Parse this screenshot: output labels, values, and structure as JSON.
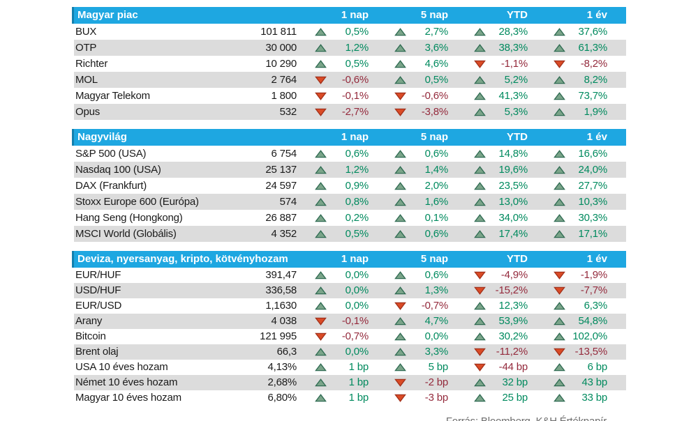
{
  "columns": [
    "1 nap",
    "5 nap",
    "YTD",
    "1 év"
  ],
  "sections": [
    {
      "title": "Magyar piac",
      "rows": [
        {
          "name": "BUX",
          "value": "101 811",
          "changes": [
            {
              "dir": "up",
              "text": "0,5%"
            },
            {
              "dir": "up",
              "text": "2,7%"
            },
            {
              "dir": "up",
              "text": "28,3%"
            },
            {
              "dir": "up",
              "text": "37,6%"
            }
          ]
        },
        {
          "name": "OTP",
          "value": "30 000",
          "changes": [
            {
              "dir": "up",
              "text": "1,2%"
            },
            {
              "dir": "up",
              "text": "3,6%"
            },
            {
              "dir": "up",
              "text": "38,3%"
            },
            {
              "dir": "up",
              "text": "61,3%"
            }
          ]
        },
        {
          "name": "Richter",
          "value": "10 290",
          "changes": [
            {
              "dir": "up",
              "text": "0,5%"
            },
            {
              "dir": "up",
              "text": "4,6%"
            },
            {
              "dir": "down",
              "text": "-1,1%"
            },
            {
              "dir": "down",
              "text": "-8,2%"
            }
          ]
        },
        {
          "name": "MOL",
          "value": "2 764",
          "changes": [
            {
              "dir": "down",
              "text": "-0,6%"
            },
            {
              "dir": "up",
              "text": "0,5%"
            },
            {
              "dir": "up",
              "text": "5,2%"
            },
            {
              "dir": "up",
              "text": "8,2%"
            }
          ]
        },
        {
          "name": "Magyar Telekom",
          "value": "1 800",
          "changes": [
            {
              "dir": "down",
              "text": "-0,1%"
            },
            {
              "dir": "down",
              "text": "-0,6%"
            },
            {
              "dir": "up",
              "text": "41,3%"
            },
            {
              "dir": "up",
              "text": "73,7%"
            }
          ]
        },
        {
          "name": "Opus",
          "value": "532",
          "changes": [
            {
              "dir": "down",
              "text": "-2,7%"
            },
            {
              "dir": "down",
              "text": "-3,8%"
            },
            {
              "dir": "up",
              "text": "5,3%"
            },
            {
              "dir": "up",
              "text": "1,9%"
            }
          ]
        }
      ]
    },
    {
      "title": "Nagyvilág",
      "rows": [
        {
          "name": "S&P 500 (USA)",
          "value": "6 754",
          "changes": [
            {
              "dir": "up",
              "text": "0,6%"
            },
            {
              "dir": "up",
              "text": "0,6%"
            },
            {
              "dir": "up",
              "text": "14,8%"
            },
            {
              "dir": "up",
              "text": "16,6%"
            }
          ]
        },
        {
          "name": "Nasdaq 100 (USA)",
          "value": "25 137",
          "changes": [
            {
              "dir": "up",
              "text": "1,2%"
            },
            {
              "dir": "up",
              "text": "1,4%"
            },
            {
              "dir": "up",
              "text": "19,6%"
            },
            {
              "dir": "up",
              "text": "24,0%"
            }
          ]
        },
        {
          "name": "DAX (Frankfurt)",
          "value": "24 597",
          "changes": [
            {
              "dir": "up",
              "text": "0,9%"
            },
            {
              "dir": "up",
              "text": "2,0%"
            },
            {
              "dir": "up",
              "text": "23,5%"
            },
            {
              "dir": "up",
              "text": "27,7%"
            }
          ]
        },
        {
          "name": "Stoxx Europe 600 (Európa)",
          "value": "574",
          "changes": [
            {
              "dir": "up",
              "text": "0,8%"
            },
            {
              "dir": "up",
              "text": "1,6%"
            },
            {
              "dir": "up",
              "text": "13,0%"
            },
            {
              "dir": "up",
              "text": "10,3%"
            }
          ]
        },
        {
          "name": "Hang Seng (Hongkong)",
          "value": "26 887",
          "changes": [
            {
              "dir": "up",
              "text": "0,2%"
            },
            {
              "dir": "up",
              "text": "0,1%"
            },
            {
              "dir": "up",
              "text": "34,0%"
            },
            {
              "dir": "up",
              "text": "30,3%"
            }
          ]
        },
        {
          "name": "MSCI World (Globális)",
          "value": "4 352",
          "changes": [
            {
              "dir": "up",
              "text": "0,5%"
            },
            {
              "dir": "up",
              "text": "0,6%"
            },
            {
              "dir": "up",
              "text": "17,4%"
            },
            {
              "dir": "up",
              "text": "17,1%"
            }
          ]
        }
      ]
    },
    {
      "title": "Deviza, nyersanyag, kripto, kötvényhozam",
      "rows": [
        {
          "name": "EUR/HUF",
          "value": "391,47",
          "changes": [
            {
              "dir": "up",
              "text": "0,0%"
            },
            {
              "dir": "up",
              "text": "0,6%"
            },
            {
              "dir": "down",
              "text": "-4,9%"
            },
            {
              "dir": "down",
              "text": "-1,9%"
            }
          ]
        },
        {
          "name": "USD/HUF",
          "value": "336,58",
          "changes": [
            {
              "dir": "up",
              "text": "0,0%"
            },
            {
              "dir": "up",
              "text": "1,3%"
            },
            {
              "dir": "down",
              "text": "-15,2%"
            },
            {
              "dir": "down",
              "text": "-7,7%"
            }
          ]
        },
        {
          "name": "EUR/USD",
          "value": "1,1630",
          "changes": [
            {
              "dir": "up",
              "text": "0,0%"
            },
            {
              "dir": "down",
              "text": "-0,7%"
            },
            {
              "dir": "up",
              "text": "12,3%"
            },
            {
              "dir": "up",
              "text": "6,3%"
            }
          ]
        },
        {
          "name": "Arany",
          "value": "4 038",
          "changes": [
            {
              "dir": "down",
              "text": "-0,1%"
            },
            {
              "dir": "up",
              "text": "4,7%"
            },
            {
              "dir": "up",
              "text": "53,9%"
            },
            {
              "dir": "up",
              "text": "54,8%"
            }
          ]
        },
        {
          "name": "Bitcoin",
          "value": "121 995",
          "changes": [
            {
              "dir": "down",
              "text": "-0,7%"
            },
            {
              "dir": "up",
              "text": "0,0%"
            },
            {
              "dir": "up",
              "text": "30,2%"
            },
            {
              "dir": "up",
              "text": "102,0%"
            }
          ]
        },
        {
          "name": "Brent olaj",
          "value": "66,3",
          "changes": [
            {
              "dir": "up",
              "text": "0,0%"
            },
            {
              "dir": "up",
              "text": "3,3%"
            },
            {
              "dir": "down",
              "text": "-11,2%"
            },
            {
              "dir": "down",
              "text": "-13,5%"
            }
          ]
        },
        {
          "name": "USA 10 éves hozam",
          "value": "4,13%",
          "changes": [
            {
              "dir": "up",
              "text": "1 bp"
            },
            {
              "dir": "up",
              "text": "5 bp"
            },
            {
              "dir": "down",
              "text": "-44 bp"
            },
            {
              "dir": "up",
              "text": "6 bp"
            }
          ]
        },
        {
          "name": "Német 10 éves hozam",
          "value": "2,68%",
          "changes": [
            {
              "dir": "up",
              "text": "1 bp"
            },
            {
              "dir": "down",
              "text": "-2 bp"
            },
            {
              "dir": "up",
              "text": "32 bp"
            },
            {
              "dir": "up",
              "text": "43 bp"
            }
          ]
        },
        {
          "name": "Magyar 10 éves hozam",
          "value": "6,80%",
          "changes": [
            {
              "dir": "up",
              "text": "1 bp"
            },
            {
              "dir": "down",
              "text": "-3 bp"
            },
            {
              "dir": "up",
              "text": "25 bp"
            },
            {
              "dir": "up",
              "text": "33 bp"
            }
          ]
        }
      ]
    }
  ],
  "footer": {
    "text": "Forrás: Bloomberg, K&H Értékpapír"
  },
  "colors": {
    "header_bg": "#1ea7e1",
    "header_edge": "#1480ae",
    "row_alt_bg": "#dcdcdc",
    "text": "#1a1a1a",
    "positive_text": "#008a5e",
    "negative_text": "#942a3c",
    "up_triangle_fill": "#7aa489",
    "up_triangle_stroke": "#2f6b52",
    "down_triangle_fill": "#da4b26",
    "down_triangle_stroke": "#a2301a",
    "source_text": "#6d6d6d"
  }
}
